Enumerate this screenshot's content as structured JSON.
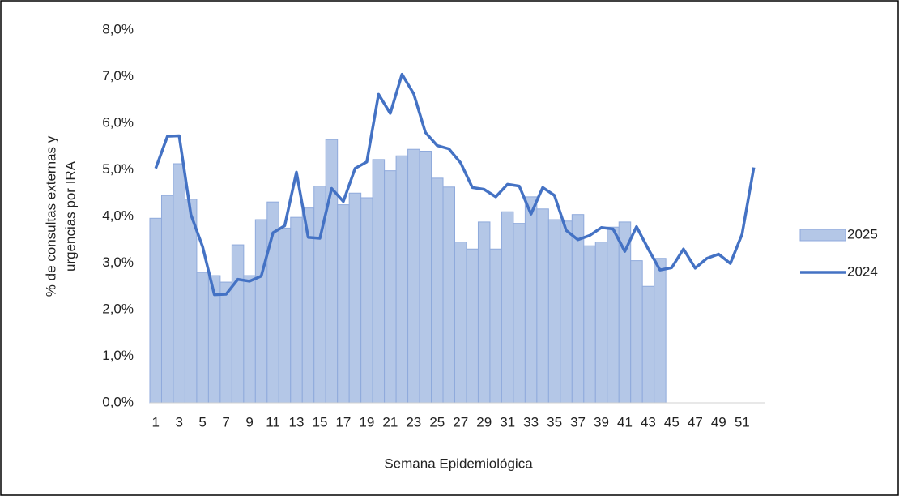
{
  "chart_data": {
    "type": "bar_line",
    "ylabel": [
      "% de consultas externas y",
      "urgencias por IRA"
    ],
    "xlabel": "Semana Epidemiológica",
    "categories": [
      "1",
      null,
      "3",
      null,
      "5",
      null,
      "7",
      null,
      "9",
      null,
      "11",
      null,
      "13",
      null,
      "15",
      null,
      "17",
      null,
      "19",
      null,
      "21",
      null,
      "23",
      null,
      "25",
      null,
      "27",
      null,
      "29",
      null,
      "31",
      null,
      "33",
      null,
      "35",
      null,
      "37",
      null,
      "39",
      null,
      "41",
      null,
      "43",
      null,
      "45",
      null,
      "47",
      null,
      "49",
      null,
      "51",
      null
    ],
    "series": [
      {
        "name": "2025",
        "type": "bar",
        "color": "#b4c7e7",
        "edge": "#8faadc",
        "values": [
          3.96,
          4.45,
          5.13,
          4.37,
          2.8,
          2.73,
          2.59,
          3.39,
          2.73,
          3.93,
          4.31,
          3.75,
          3.98,
          4.18,
          4.65,
          5.65,
          4.25,
          4.5,
          4.4,
          5.22,
          4.98,
          5.3,
          5.44,
          5.4,
          4.82,
          4.63,
          3.45,
          3.3,
          3.88,
          3.3,
          4.1,
          3.85,
          4.42,
          4.16,
          3.93,
          3.9,
          4.04,
          3.37,
          3.45,
          3.77,
          3.88,
          3.05,
          2.5,
          3.1,
          null,
          null,
          null,
          null,
          null,
          null,
          null,
          null
        ]
      },
      {
        "name": "2024",
        "type": "line",
        "color": "#4472c4",
        "values": [
          5.03,
          5.72,
          5.73,
          4.04,
          3.35,
          2.32,
          2.33,
          2.65,
          2.61,
          2.72,
          3.65,
          3.8,
          4.95,
          3.55,
          3.53,
          4.6,
          4.32,
          5.03,
          5.17,
          6.62,
          6.21,
          7.05,
          6.63,
          5.8,
          5.52,
          5.45,
          5.15,
          4.62,
          4.58,
          4.42,
          4.69,
          4.65,
          4.05,
          4.62,
          4.45,
          3.7,
          3.5,
          3.59,
          3.76,
          3.73,
          3.25,
          3.78,
          3.3,
          2.85,
          2.9,
          3.3,
          2.89,
          3.1,
          3.19,
          2.99,
          3.62,
          5.05
        ]
      }
    ],
    "ylim": [
      0,
      8
    ],
    "yticks": [
      {
        "value": 0,
        "label": "0,0%"
      },
      {
        "value": 1,
        "label": "1,0%"
      },
      {
        "value": 2,
        "label": "2,0%"
      },
      {
        "value": 3,
        "label": "3,0%"
      },
      {
        "value": 4,
        "label": "4,0%"
      },
      {
        "value": 5,
        "label": "5,0%"
      },
      {
        "value": 6,
        "label": "6,0%"
      },
      {
        "value": 7,
        "label": "7,0%"
      },
      {
        "value": 8,
        "label": "8,0%"
      }
    ],
    "grid": false,
    "legend": "right"
  }
}
